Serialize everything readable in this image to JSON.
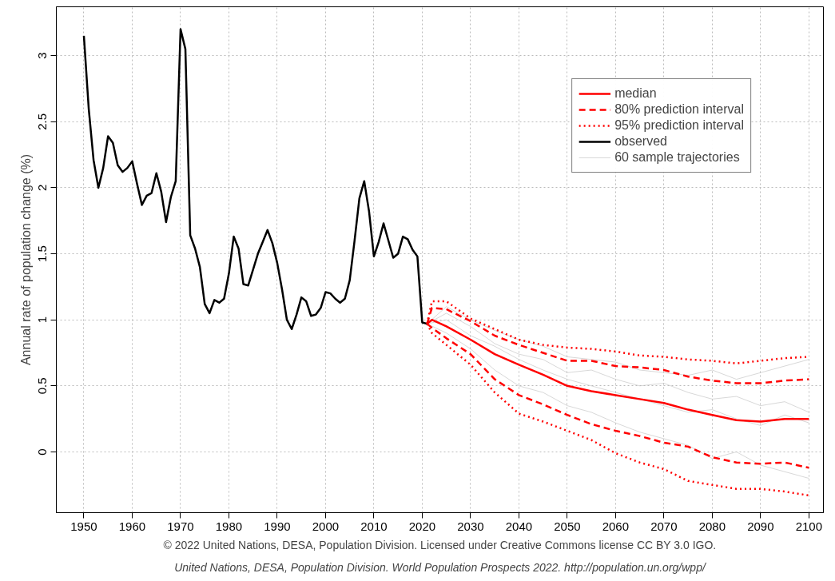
{
  "chart_data": {
    "type": "line",
    "ylabel": "Annual rate of population change (%)",
    "xlim": [
      1944.3,
      2103
    ],
    "ylim": [
      -0.46,
      3.37
    ],
    "xticks": [
      1950,
      1960,
      1970,
      1980,
      1990,
      2000,
      2010,
      2020,
      2030,
      2040,
      2050,
      2060,
      2070,
      2080,
      2090,
      2100
    ],
    "yticks": [
      0,
      0.5,
      1,
      1.5,
      2,
      2.5,
      3
    ],
    "grid": true,
    "legend": "top right",
    "annotations": [
      "© 2022 United Nations, DESA, Population Division. Licensed under Creative Commons license CC BY 3.0 IGO.",
      "United Nations, DESA, Population Division. World Population Prospects 2022. http://population.un.org/wpp/"
    ],
    "series": [
      {
        "name": "median",
        "color": "#ff0000",
        "line_style": "solid",
        "x": [
          2021,
          2022,
          2025,
          2030,
          2035,
          2040,
          2045,
          2050,
          2055,
          2060,
          2065,
          2070,
          2075,
          2080,
          2085,
          2090,
          2095,
          2100
        ],
        "values": [
          0.97,
          1.0,
          0.95,
          0.85,
          0.74,
          0.66,
          0.585,
          0.5,
          0.46,
          0.43,
          0.4,
          0.37,
          0.32,
          0.28,
          0.24,
          0.23,
          0.25,
          0.25
        ]
      },
      {
        "name": "80% prediction interval",
        "color": "#ff0000",
        "line_style": "dashed",
        "x": [
          2021,
          2022,
          2025,
          2030,
          2035,
          2040,
          2045,
          2050,
          2055,
          2060,
          2065,
          2070,
          2075,
          2080,
          2085,
          2090,
          2095,
          2100
        ],
        "values": [
          0.97,
          1.09,
          1.08,
          0.99,
          0.88,
          0.81,
          0.75,
          0.69,
          0.69,
          0.65,
          0.64,
          0.62,
          0.57,
          0.54,
          0.52,
          0.52,
          0.54,
          0.55
        ]
      },
      {
        "name": "95% prediction interval",
        "color": "#ff0000",
        "line_style": "dotted",
        "x": [
          2021,
          2022,
          2025,
          2030,
          2035,
          2040,
          2045,
          2050,
          2055,
          2060,
          2065,
          2070,
          2075,
          2080,
          2085,
          2090,
          2095,
          2100
        ],
        "values": [
          0.97,
          1.14,
          1.14,
          1.01,
          0.93,
          0.85,
          0.81,
          0.79,
          0.78,
          0.76,
          0.73,
          0.72,
          0.7,
          0.69,
          0.67,
          0.69,
          0.71,
          0.72
        ]
      },
      {
        "name": "observed",
        "color": "#000000",
        "line_style": "solid",
        "x": [
          1950,
          1951,
          1952,
          1953,
          1954,
          1955,
          1956,
          1957,
          1958,
          1959,
          1960,
          1961,
          1962,
          1963,
          1964,
          1965,
          1966,
          1967,
          1968,
          1969,
          1970,
          1971,
          1972,
          1973,
          1974,
          1975,
          1976,
          1977,
          1978,
          1979,
          1980,
          1981,
          1982,
          1983,
          1984,
          1985,
          1986,
          1987,
          1988,
          1989,
          1990,
          1991,
          1992,
          1993,
          1994,
          1995,
          1996,
          1997,
          1998,
          1999,
          2000,
          2001,
          2002,
          2003,
          2004,
          2005,
          2006,
          2007,
          2008,
          2009,
          2010,
          2011,
          2012,
          2013,
          2014,
          2015,
          2016,
          2017,
          2018,
          2019,
          2020,
          2021
        ],
        "values": [
          3.15,
          2.6,
          2.21,
          2.0,
          2.15,
          2.39,
          2.34,
          2.17,
          2.12,
          2.15,
          2.2,
          2.03,
          1.87,
          1.94,
          1.96,
          2.11,
          1.97,
          1.74,
          1.93,
          2.05,
          3.2,
          3.05,
          1.64,
          1.54,
          1.4,
          1.12,
          1.05,
          1.15,
          1.13,
          1.16,
          1.35,
          1.63,
          1.54,
          1.27,
          1.26,
          1.38,
          1.5,
          1.59,
          1.68,
          1.58,
          1.43,
          1.23,
          1.0,
          0.93,
          1.04,
          1.17,
          1.14,
          1.03,
          1.04,
          1.09,
          1.21,
          1.2,
          1.16,
          1.13,
          1.16,
          1.3,
          1.6,
          1.92,
          2.05,
          1.82,
          1.48,
          1.59,
          1.73,
          1.6,
          1.47,
          1.5,
          1.63,
          1.61,
          1.53,
          1.48,
          0.98,
          0.97
        ]
      },
      {
        "name": "60 sample trajectories",
        "color": "#bebebe",
        "line_style": "solid",
        "x": [
          2021,
          2025,
          2030,
          2035,
          2040,
          2045,
          2050,
          2055,
          2060,
          2065,
          2070,
          2075,
          2080,
          2085,
          2090,
          2095,
          2100
        ],
        "values": [
          0.97,
          1.05,
          0.95,
          0.82,
          0.74,
          0.7,
          0.6,
          0.62,
          0.55,
          0.5,
          0.52,
          0.45,
          0.4,
          0.42,
          0.35,
          0.38,
          0.3
        ]
      },
      {
        "color": "#ff0000",
        "line_style": "dashed",
        "x": [
          2021,
          2022,
          2025,
          2030,
          2035,
          2040,
          2045,
          2050,
          2055,
          2060,
          2065,
          2070,
          2075,
          2080,
          2085,
          2090,
          2095,
          2100
        ],
        "values": [
          0.97,
          0.94,
          0.86,
          0.74,
          0.55,
          0.43,
          0.36,
          0.28,
          0.21,
          0.16,
          0.12,
          0.07,
          0.04,
          -0.04,
          -0.08,
          -0.09,
          -0.08,
          -0.12
        ]
      },
      {
        "color": "#ff0000",
        "line_style": "dotted",
        "x": [
          2021,
          2022,
          2025,
          2030,
          2035,
          2040,
          2045,
          2050,
          2055,
          2060,
          2065,
          2070,
          2075,
          2080,
          2085,
          2090,
          2095,
          2100
        ],
        "values": [
          0.97,
          0.9,
          0.81,
          0.66,
          0.45,
          0.29,
          0.23,
          0.16,
          0.09,
          -0.01,
          -0.08,
          -0.13,
          -0.22,
          -0.25,
          -0.28,
          -0.28,
          -0.3,
          -0.33
        ]
      },
      {
        "color": "#bebebe",
        "line_style": "solid",
        "x": [
          2021,
          2025,
          2030,
          2035,
          2040,
          2045,
          2050,
          2055,
          2060,
          2065,
          2070,
          2075,
          2080,
          2085,
          2090,
          2095,
          2100
        ],
        "values": [
          0.97,
          0.9,
          0.78,
          0.62,
          0.5,
          0.45,
          0.35,
          0.3,
          0.22,
          0.15,
          0.1,
          0.05,
          -0.05,
          0.0,
          -0.1,
          -0.15,
          -0.2
        ]
      },
      {
        "color": "#bebebe",
        "line_style": "solid",
        "x": [
          2021,
          2025,
          2030,
          2035,
          2040,
          2045,
          2050,
          2055,
          2060,
          2065,
          2070,
          2075,
          2080,
          2085,
          2090,
          2095,
          2100
        ],
        "values": [
          0.97,
          1.0,
          0.88,
          0.8,
          0.7,
          0.62,
          0.55,
          0.5,
          0.45,
          0.4,
          0.35,
          0.3,
          0.32,
          0.25,
          0.2,
          0.28,
          0.22
        ]
      },
      {
        "color": "#bebebe",
        "line_style": "solid",
        "x": [
          2021,
          2025,
          2030,
          2035,
          2040,
          2045,
          2050,
          2055,
          2060,
          2065,
          2070,
          2075,
          2080,
          2085,
          2090,
          2095,
          2100
        ],
        "values": [
          0.97,
          1.1,
          1.0,
          0.92,
          0.85,
          0.8,
          0.72,
          0.7,
          0.68,
          0.62,
          0.6,
          0.58,
          0.62,
          0.55,
          0.6,
          0.65,
          0.7
        ]
      }
    ]
  }
}
